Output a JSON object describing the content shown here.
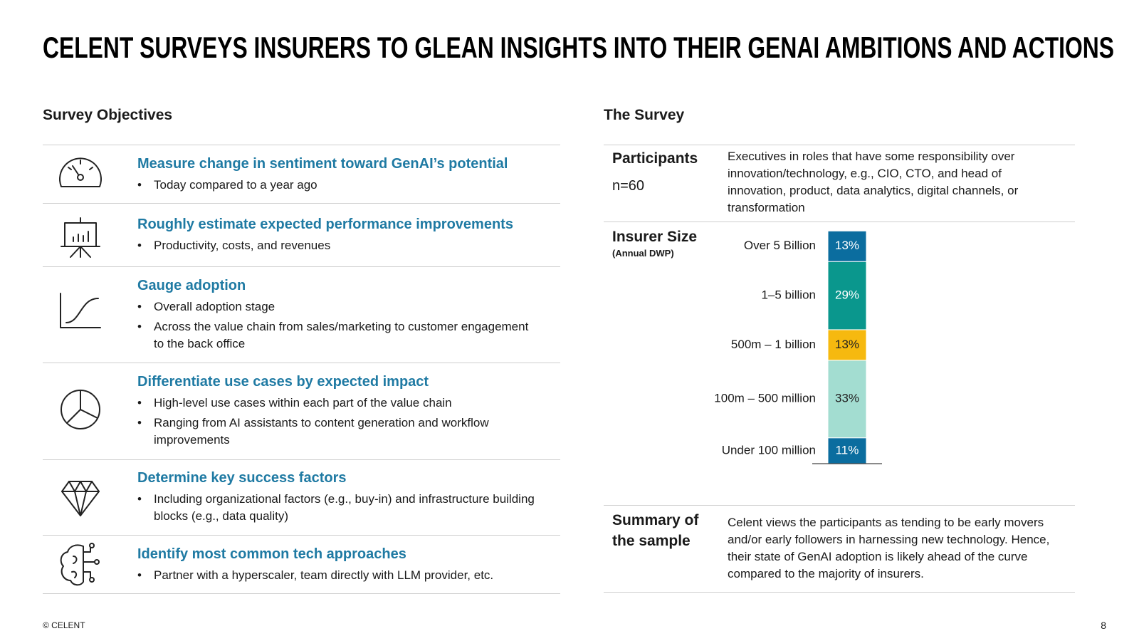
{
  "header": {
    "title": "CELENT SURVEYS INSURERS TO GLEAN INSIGHTS INTO THEIR GENAI AMBITIONS AND ACTIONS"
  },
  "objectives": {
    "heading": "Survey Objectives",
    "items": [
      {
        "title": "Measure change in sentiment toward GenAI’s potential",
        "bullets": [
          "Today compared to a year ago"
        ]
      },
      {
        "title": "Roughly estimate expected performance improvements",
        "bullets": [
          "Productivity, costs, and revenues"
        ]
      },
      {
        "title": "Gauge adoption",
        "bullets": [
          "Overall adoption stage",
          "Across the value chain from sales/marketing to customer engagement to the back office"
        ]
      },
      {
        "title": "Differentiate use cases by expected impact",
        "bullets": [
          "High-level use cases within each part of the value chain",
          "Ranging from AI assistants to content generation and workflow improvements"
        ]
      },
      {
        "title": "Determine key success factors",
        "bullets": [
          "Including organizational factors (e.g., buy-in) and infrastructure building blocks (e.g., data quality)"
        ]
      },
      {
        "title": "Identify most common tech approaches",
        "bullets": [
          "Partner with a hyperscaler, team directly with LLM provider, etc."
        ]
      }
    ]
  },
  "survey": {
    "heading": "The Survey",
    "participants": {
      "label": "Participants",
      "n": "n=60",
      "text": "Executives in roles that have some responsibility over innovation/technology, e.g., CIO, CTO, and head of innovation, product, data analytics, digital channels, or transformation"
    },
    "insurer_size": {
      "label": "Insurer Size",
      "sublabel": "(Annual DWP)"
    },
    "summary": {
      "label": "Summary of the sample",
      "text": "Celent views the participants as tending to be early movers and/or early followers in harnessing new technology. Hence, their state of GenAI adoption is likely ahead of the curve compared to the majority of insurers."
    }
  },
  "chart_data": {
    "type": "stacked_bar",
    "categories": [
      "Over 5 Billion",
      "1–5 billion",
      "500m – 1 billion",
      "100m – 500 million",
      "Under 100 million"
    ],
    "values": [
      13,
      29,
      13,
      33,
      11
    ],
    "value_labels": [
      "13%",
      "29%",
      "13%",
      "33%",
      "11%"
    ],
    "colors": [
      "#0b6d9f",
      "#0a978d",
      "#f6b90f",
      "#a3ddd1",
      "#0b6d9f"
    ],
    "label_colors": [
      "#ffffff",
      "#ffffff",
      "#222222",
      "#222222",
      "#ffffff"
    ]
  },
  "footer": {
    "copyright": "© CELENT",
    "page": "8"
  }
}
